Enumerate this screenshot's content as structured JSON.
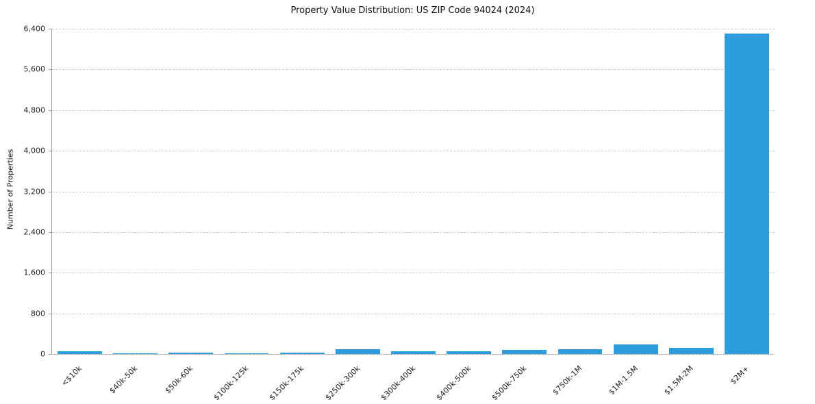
{
  "chart_data": {
    "type": "bar",
    "title": "Property Value Distribution: US ZIP Code 94024 (2024)",
    "xlabel": "",
    "ylabel": "Number of Properties",
    "categories": [
      "<$10k",
      "$40k-50k",
      "$50k-60k",
      "$100k-125k",
      "$150k-175k",
      "$250k-300k",
      "$300k-400k",
      "$400k-500k",
      "$500k-750k",
      "$750k-1M",
      "$1M-1.5M",
      "$1.5M-2M",
      "$2M+"
    ],
    "values": [
      60,
      8,
      25,
      8,
      25,
      90,
      50,
      55,
      75,
      100,
      190,
      120,
      6300
    ],
    "yticks": [
      0,
      800,
      1600,
      2400,
      3200,
      4000,
      4800,
      5600,
      6400
    ],
    "ylim": [
      0,
      6400
    ],
    "bar_color": "#2D9CDB",
    "grid": "horizontal-dashed",
    "legend": "none"
  }
}
